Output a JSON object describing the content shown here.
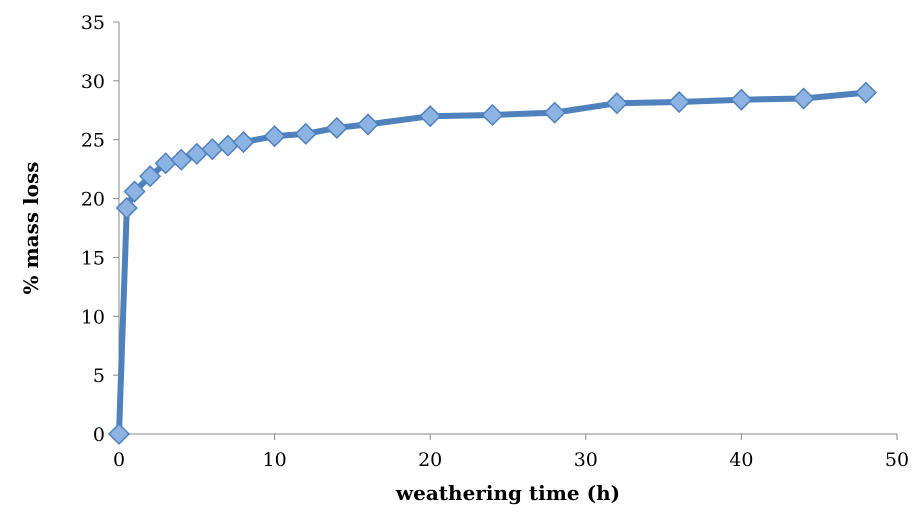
{
  "chart_data": {
    "type": "line",
    "title": "",
    "xlabel": "weathering time (h)",
    "ylabel": "% mass loss",
    "xlim": [
      0,
      50
    ],
    "ylim": [
      0,
      35
    ],
    "xticks": [
      0,
      10,
      20,
      30,
      40,
      50
    ],
    "yticks": [
      0,
      5,
      10,
      15,
      20,
      25,
      30,
      35
    ],
    "grid": false,
    "legend": "none",
    "series": [
      {
        "color": "#4f81bd",
        "marker_fill": "#8db3e2",
        "marker": "diamond",
        "x": [
          0,
          0.5,
          1,
          2,
          3,
          4,
          5,
          6,
          7,
          8,
          10,
          12,
          14,
          16,
          20,
          24,
          28,
          32,
          36,
          40,
          44,
          48
        ],
        "y": [
          0,
          19.2,
          20.6,
          21.9,
          23.0,
          23.3,
          23.8,
          24.2,
          24.5,
          24.8,
          25.3,
          25.5,
          26.0,
          26.3,
          27.0,
          27.1,
          27.3,
          28.1,
          28.2,
          28.4,
          28.5,
          29.0
        ]
      }
    ]
  }
}
